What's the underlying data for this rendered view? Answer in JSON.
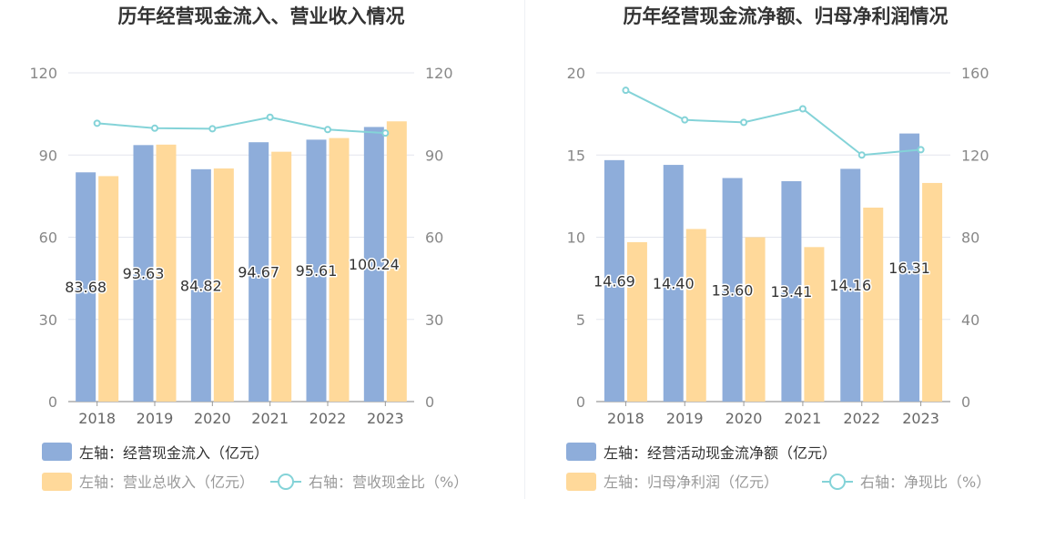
{
  "chart_data": [
    {
      "type": "bar",
      "title": "历年经营现金流入、营业收入情况",
      "categories": [
        "2018",
        "2019",
        "2020",
        "2021",
        "2022",
        "2023"
      ],
      "left_axis": {
        "min": 0,
        "max": 120,
        "ticks": [
          "0",
          "30",
          "60",
          "90",
          "120"
        ]
      },
      "right_axis": {
        "min": 0,
        "max": 120,
        "ticks": [
          "0",
          "30",
          "60",
          "90",
          "120"
        ]
      },
      "series": [
        {
          "name": "左轴：经营现金流入（亿元）",
          "type": "bar",
          "axis": "left",
          "color": "#8eadda",
          "values": [
            83.68,
            93.63,
            84.82,
            94.67,
            95.61,
            100.24
          ],
          "labels": [
            "83.68",
            "93.63",
            "84.82",
            "94.67",
            "95.61",
            "100.24"
          ]
        },
        {
          "name": "左轴：营业总收入（亿元）",
          "type": "bar",
          "axis": "left",
          "color": "#ffd99a",
          "values": [
            82.3,
            93.8,
            85.1,
            91.2,
            96.2,
            102.3
          ]
        },
        {
          "name": "右轴：营收现金比（%）",
          "type": "line",
          "axis": "right",
          "color": "#84d3d8",
          "values": [
            101.6,
            99.8,
            99.6,
            103.8,
            99.3,
            98.0
          ]
        }
      ]
    },
    {
      "type": "bar",
      "title": "历年经营现金流净额、归母净利润情况",
      "categories": [
        "2018",
        "2019",
        "2020",
        "2021",
        "2022",
        "2023"
      ],
      "left_axis": {
        "min": 0,
        "max": 20,
        "ticks": [
          "0",
          "5",
          "10",
          "15",
          "20"
        ]
      },
      "right_axis": {
        "min": 0,
        "max": 160,
        "ticks": [
          "0",
          "40",
          "80",
          "120",
          "160"
        ]
      },
      "series": [
        {
          "name": "左轴：经营活动现金流净额（亿元）",
          "type": "bar",
          "axis": "left",
          "color": "#8eadda",
          "values": [
            14.69,
            14.4,
            13.6,
            13.41,
            14.16,
            16.31
          ],
          "labels": [
            "14.69",
            "14.40",
            "13.60",
            "13.41",
            "14.16",
            "16.31"
          ]
        },
        {
          "name": "左轴：归母净利润（亿元）",
          "type": "bar",
          "axis": "left",
          "color": "#ffd99a",
          "values": [
            9.7,
            10.5,
            10.0,
            9.4,
            11.8,
            13.3
          ]
        },
        {
          "name": "右轴：净现比（%）",
          "type": "line",
          "axis": "right",
          "color": "#84d3d8",
          "values": [
            151.5,
            137.1,
            135.9,
            142.5,
            120.0,
            122.6
          ]
        }
      ]
    }
  ]
}
